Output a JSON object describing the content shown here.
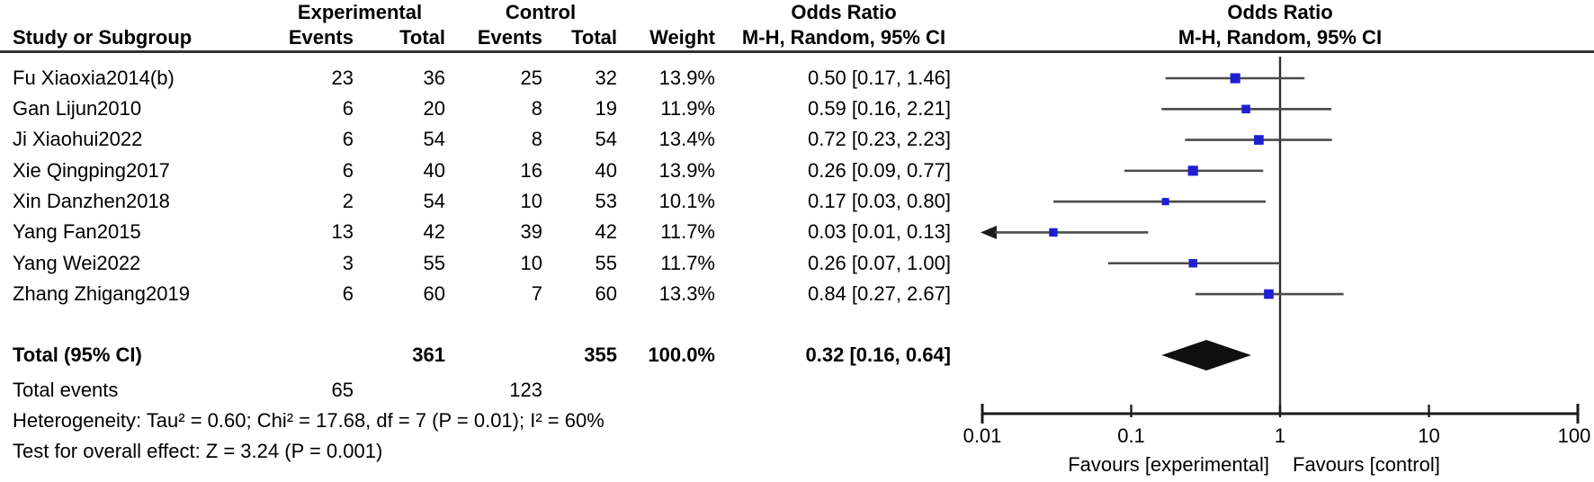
{
  "table": {
    "group_headers": {
      "experimental": "Experimental",
      "control": "Control",
      "odds_ratio_text": "Odds Ratio",
      "odds_ratio_plot": "Odds Ratio"
    },
    "col_headers": {
      "study": "Study or Subgroup",
      "events_exp": "Events",
      "total_exp": "Total",
      "events_ctl": "Events",
      "total_ctl": "Total",
      "weight": "Weight",
      "mh_text": "M-H, Random, 95% CI",
      "mh_plot": "M-H, Random, 95% CI"
    },
    "rows": [
      {
        "study": "Fu Xiaoxia2014(b)",
        "e1": "23",
        "t1": "36",
        "e2": "25",
        "t2": "32",
        "weight": "13.9%",
        "or_ci": "0.50 [0.17, 1.46]"
      },
      {
        "study": "Gan Lijun2010",
        "e1": "6",
        "t1": "20",
        "e2": "8",
        "t2": "19",
        "weight": "11.9%",
        "or_ci": "0.59 [0.16, 2.21]"
      },
      {
        "study": "Ji Xiaohui2022",
        "e1": "6",
        "t1": "54",
        "e2": "8",
        "t2": "54",
        "weight": "13.4%",
        "or_ci": "0.72 [0.23, 2.23]"
      },
      {
        "study": "Xie Qingping2017",
        "e1": "6",
        "t1": "40",
        "e2": "16",
        "t2": "40",
        "weight": "13.9%",
        "or_ci": "0.26 [0.09, 0.77]"
      },
      {
        "study": "Xin Danzhen2018",
        "e1": "2",
        "t1": "54",
        "e2": "10",
        "t2": "53",
        "weight": "10.1%",
        "or_ci": "0.17 [0.03, 0.80]"
      },
      {
        "study": "Yang Fan2015",
        "e1": "13",
        "t1": "42",
        "e2": "39",
        "t2": "42",
        "weight": "11.7%",
        "or_ci": "0.03 [0.01, 0.13]"
      },
      {
        "study": "Yang Wei2022",
        "e1": "3",
        "t1": "55",
        "e2": "10",
        "t2": "55",
        "weight": "11.7%",
        "or_ci": "0.26 [0.07, 1.00]"
      },
      {
        "study": "Zhang Zhigang2019",
        "e1": "6",
        "t1": "60",
        "e2": "7",
        "t2": "60",
        "weight": "13.3%",
        "or_ci": "0.84 [0.27, 2.67]"
      }
    ],
    "total_row": {
      "label": "Total (95% CI)",
      "t1": "361",
      "t2": "355",
      "weight": "100.0%",
      "or_ci": "0.32 [0.16, 0.64]"
    },
    "total_events": {
      "label": "Total events",
      "e1": "65",
      "e2": "123"
    },
    "heterogeneity": "Heterogeneity: Tau² = 0.60; Chi² = 17.68, df = 7 (P = 0.01); I² = 60%",
    "overall_effect": "Test for overall effect: Z = 3.24 (P = 0.001)"
  },
  "chart_data": {
    "type": "forest",
    "effect_measure": "Odds Ratio, M-H, Random, 95% CI",
    "x_scale": "log10",
    "xlim": [
      0.01,
      100
    ],
    "axis_ticks": [
      0.01,
      0.1,
      1,
      10,
      100
    ],
    "no_effect_line": 1,
    "favours_left": "Favours [experimental]",
    "favours_right": "Favours [control]",
    "marker_color": "#1e1ed2",
    "line_color": "#4b4b4b",
    "axis_color": "#1c1c1c",
    "diamond_color": "#0f0f0f",
    "studies": [
      {
        "name": "Fu Xiaoxia2014(b)",
        "or": 0.5,
        "ci_low": 0.17,
        "ci_high": 1.46,
        "weight": 13.9
      },
      {
        "name": "Gan Lijun2010",
        "or": 0.59,
        "ci_low": 0.16,
        "ci_high": 2.21,
        "weight": 11.9
      },
      {
        "name": "Ji Xiaohui2022",
        "or": 0.72,
        "ci_low": 0.23,
        "ci_high": 2.23,
        "weight": 13.4
      },
      {
        "name": "Xie Qingping2017",
        "or": 0.26,
        "ci_low": 0.09,
        "ci_high": 0.77,
        "weight": 13.9
      },
      {
        "name": "Xin Danzhen2018",
        "or": 0.17,
        "ci_low": 0.03,
        "ci_high": 0.8,
        "weight": 10.1
      },
      {
        "name": "Yang Fan2015",
        "or": 0.03,
        "ci_low": 0.01,
        "ci_high": 0.13,
        "weight": 11.7
      },
      {
        "name": "Yang Wei2022",
        "or": 0.26,
        "ci_low": 0.07,
        "ci_high": 1.0,
        "weight": 11.7
      },
      {
        "name": "Zhang Zhigang2019",
        "or": 0.84,
        "ci_low": 0.27,
        "ci_high": 2.67,
        "weight": 13.3
      }
    ],
    "total": {
      "label": "Total (95% CI)",
      "or": 0.32,
      "ci_low": 0.16,
      "ci_high": 0.64
    }
  }
}
